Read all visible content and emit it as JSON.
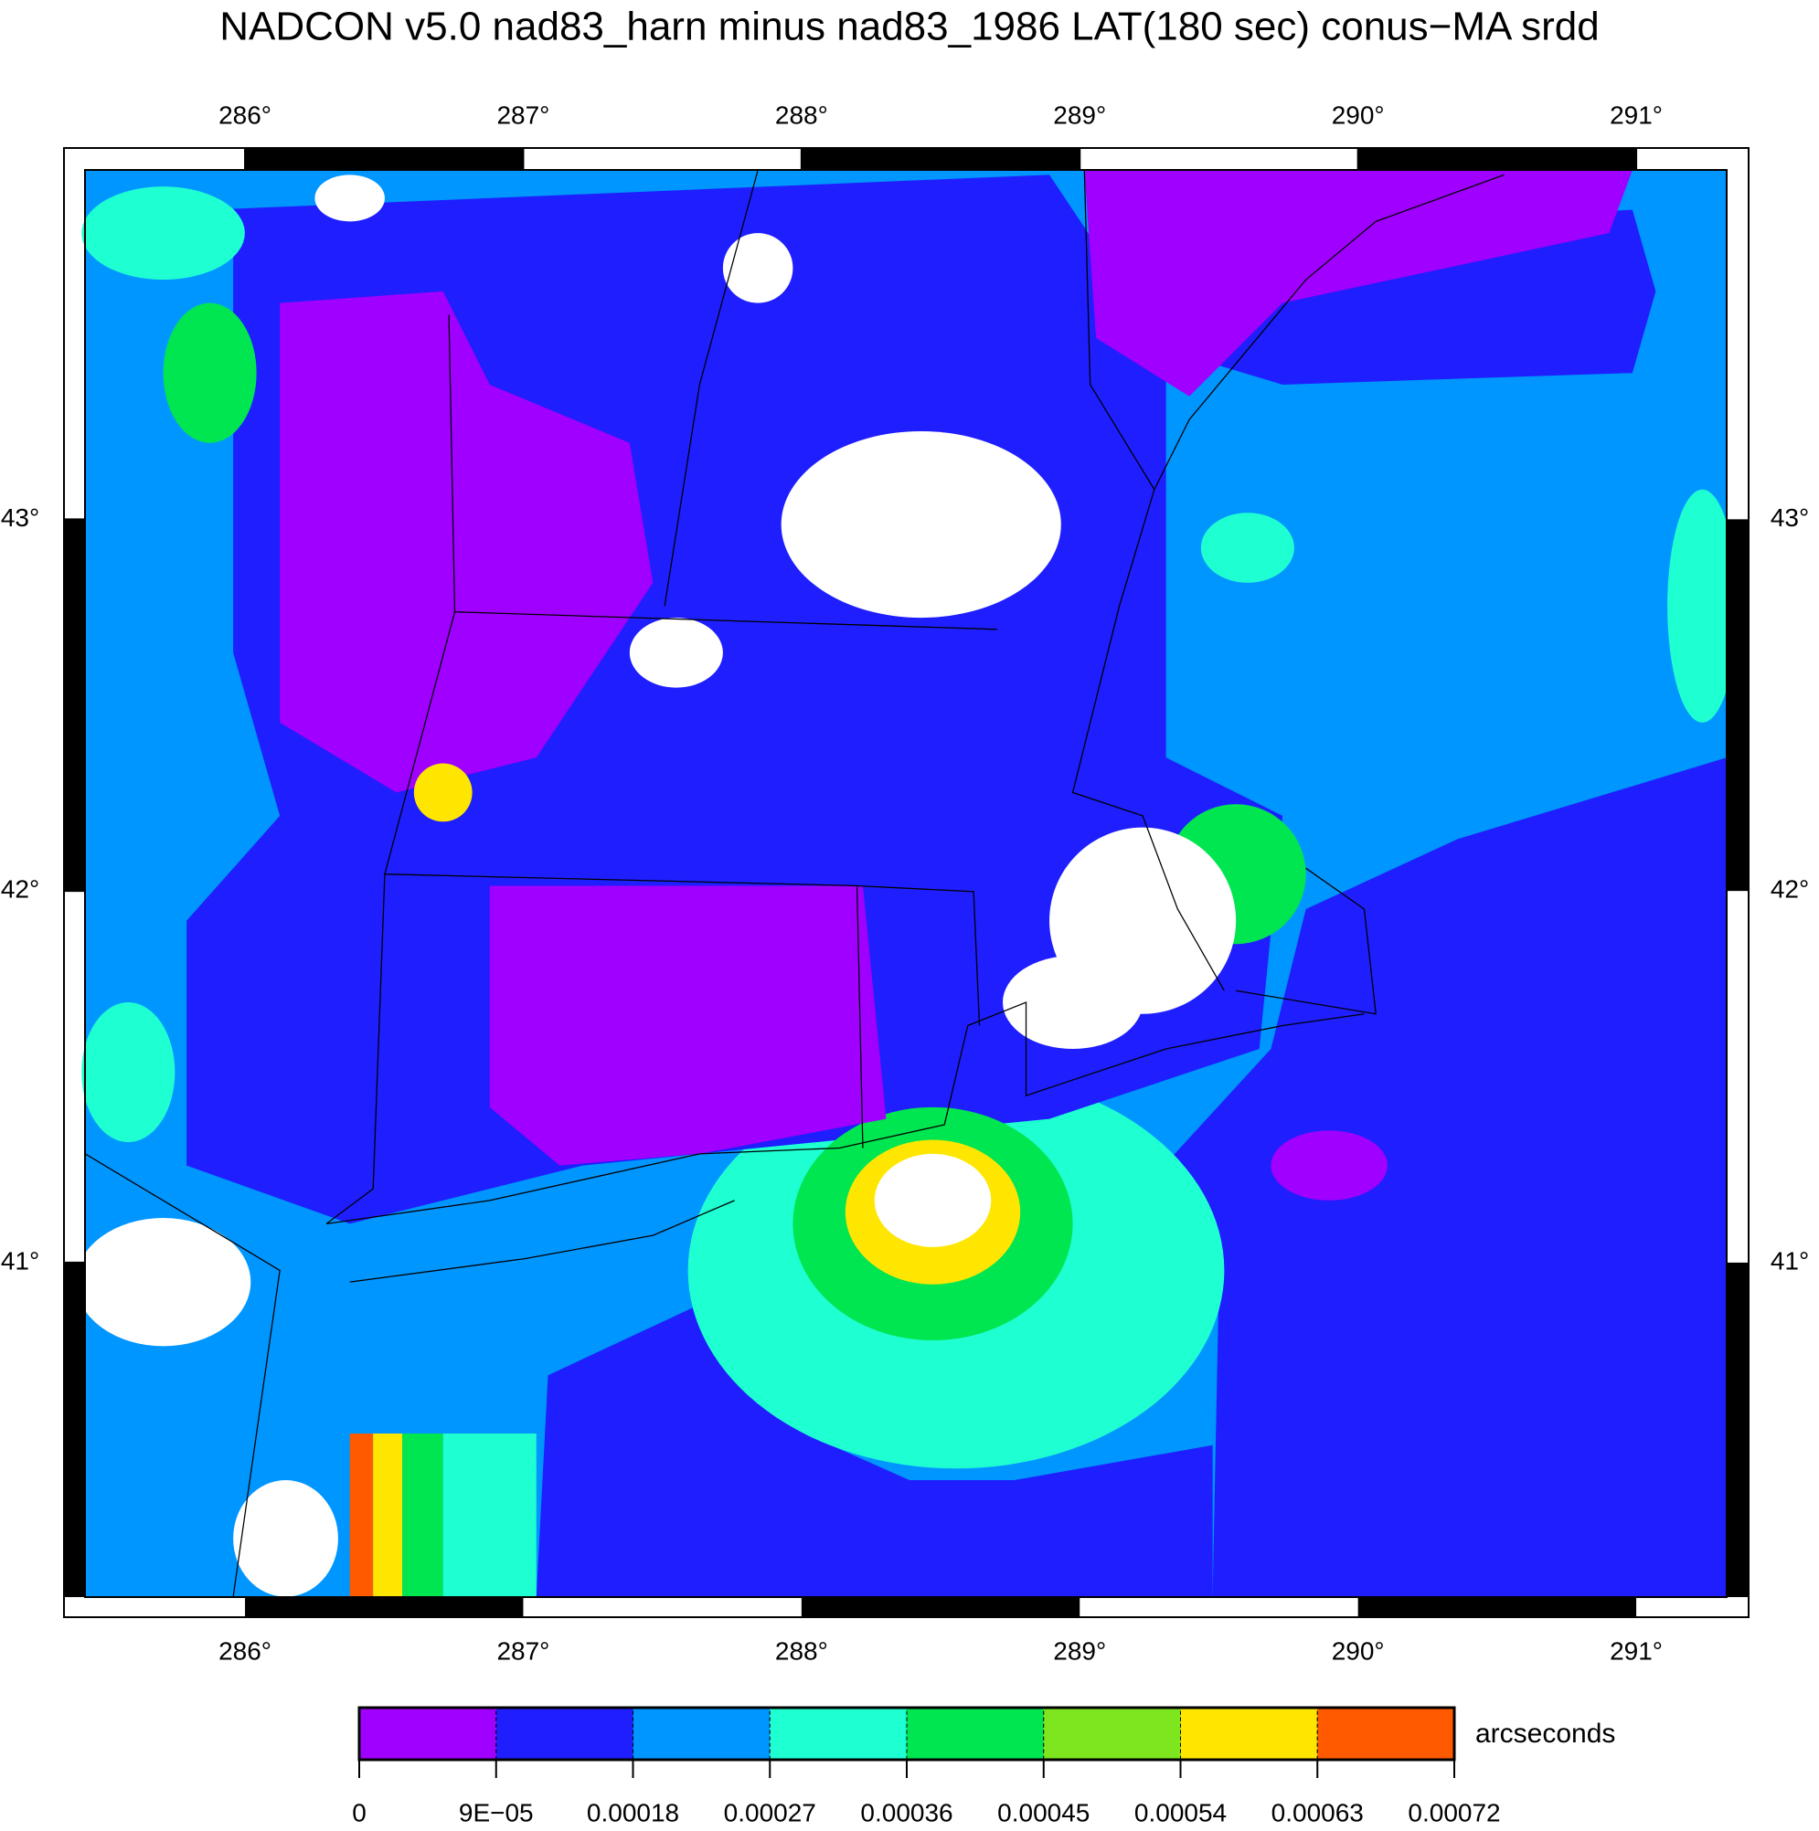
{
  "title": "NADCON v5.0 nad83_harn minus nad83_1986 LAT(180 sec) conus−MA srdd",
  "map": {
    "xlim": [
      285.425,
      291.325
    ],
    "ylim": [
      40.1,
      43.94
    ],
    "xticks": [
      {
        "value": 286,
        "label": "286°"
      },
      {
        "value": 287,
        "label": "287°"
      },
      {
        "value": 288,
        "label": "288°"
      },
      {
        "value": 289,
        "label": "289°"
      },
      {
        "value": 290,
        "label": "290°"
      },
      {
        "value": 291,
        "label": "291°"
      }
    ],
    "yticks": [
      {
        "value": 41,
        "label": "41°"
      },
      {
        "value": 42,
        "label": "42°"
      },
      {
        "value": 43,
        "label": "43°"
      }
    ]
  },
  "colorbar": {
    "label": "arcseconds",
    "colors": [
      "#a000ff",
      "#1e1eff",
      "#0096ff",
      "#1effd2",
      "#00e650",
      "#7de61e",
      "#ffe600",
      "#ff5a00"
    ],
    "ticks": [
      0,
      {
        "value": 9e-05,
        "label": "9E−05"
      },
      0.00018,
      0.00027,
      0.00036,
      0.00045,
      0.00054,
      0.00063,
      0.00072
    ]
  }
}
